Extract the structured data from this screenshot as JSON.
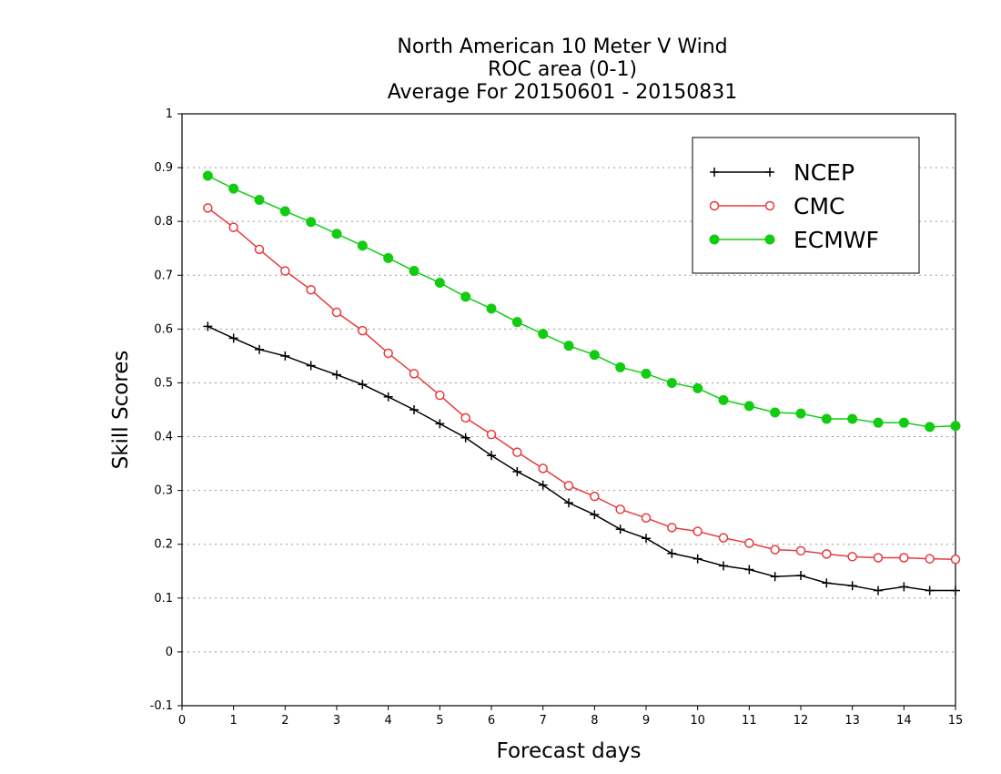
{
  "chart_data": {
    "type": "line",
    "title": [
      "North American 10 Meter V Wind",
      "ROC area (0-1)",
      "Average For 20150601 - 20150831"
    ],
    "xlabel": "Forecast days",
    "ylabel": "Skill Scores",
    "xlim": [
      0,
      15
    ],
    "ylim": [
      -0.1,
      1
    ],
    "xticks": [
      0,
      1,
      2,
      3,
      4,
      5,
      6,
      7,
      8,
      9,
      10,
      11,
      12,
      13,
      14,
      15
    ],
    "xtick_labels": [
      "0",
      "1",
      "2",
      "3",
      "4",
      "5",
      "6",
      "7",
      "8",
      "9",
      "10",
      "11",
      "12",
      "13",
      "14",
      "15"
    ],
    "yticks": [
      -0.1,
      0,
      0.1,
      0.2,
      0.3,
      0.4,
      0.5,
      0.6,
      0.7,
      0.8,
      0.9,
      1
    ],
    "ytick_labels": [
      "-0.1",
      "0",
      "0.1",
      "0.2",
      "0.3",
      "0.4",
      "0.5",
      "0.6",
      "0.7",
      "0.8",
      "0.9",
      "1"
    ],
    "grid": "horizontal dotted",
    "legend_position": "top-right",
    "x": [
      0.5,
      1,
      1.5,
      2,
      2.5,
      3,
      3.5,
      4,
      4.5,
      5,
      5.5,
      6,
      6.5,
      7,
      7.5,
      8,
      8.5,
      9,
      9.5,
      10,
      10.5,
      11,
      11.5,
      12,
      12.5,
      13,
      13.5,
      14,
      14.5,
      15
    ],
    "series": [
      {
        "name": "NCEP",
        "color": "#000000",
        "marker": "plus",
        "values": [
          0.605,
          0.583,
          0.562,
          0.55,
          0.532,
          0.515,
          0.497,
          0.474,
          0.45,
          0.424,
          0.398,
          0.365,
          0.335,
          0.31,
          0.277,
          0.255,
          0.228,
          0.211,
          0.183,
          0.173,
          0.16,
          0.153,
          0.14,
          0.142,
          0.128,
          0.123,
          0.114,
          0.121,
          0.114,
          0.114
        ]
      },
      {
        "name": "CMC",
        "color": "#e8393b",
        "marker": "open-circle",
        "values": [
          0.825,
          0.789,
          0.748,
          0.708,
          0.673,
          0.631,
          0.597,
          0.555,
          0.517,
          0.477,
          0.435,
          0.404,
          0.371,
          0.341,
          0.309,
          0.289,
          0.265,
          0.249,
          0.231,
          0.224,
          0.212,
          0.202,
          0.19,
          0.188,
          0.182,
          0.177,
          0.175,
          0.175,
          0.173,
          0.172
        ]
      },
      {
        "name": "ECMWF",
        "color": "#11cc11",
        "marker": "filled-circle",
        "values": [
          0.885,
          0.861,
          0.84,
          0.819,
          0.799,
          0.777,
          0.755,
          0.732,
          0.708,
          0.686,
          0.66,
          0.638,
          0.613,
          0.591,
          0.569,
          0.552,
          0.529,
          0.517,
          0.5,
          0.49,
          0.468,
          0.457,
          0.445,
          0.443,
          0.433,
          0.433,
          0.426,
          0.426,
          0.418,
          0.42
        ]
      }
    ]
  }
}
